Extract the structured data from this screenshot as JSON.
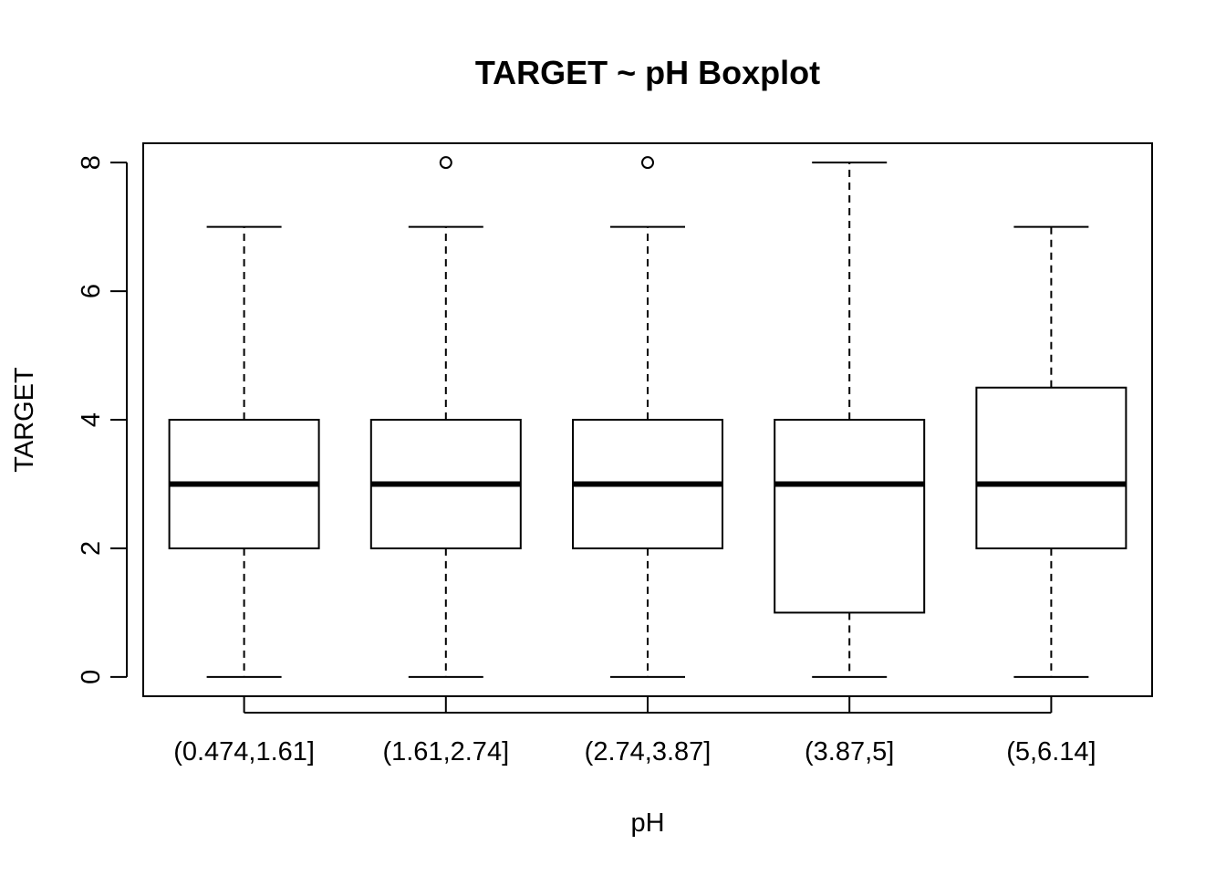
{
  "chart_data": {
    "type": "boxplot",
    "title": "TARGET ~ pH Boxplot",
    "xlabel": "pH",
    "ylabel": "TARGET",
    "ylim": [
      -0.3,
      8.3
    ],
    "yticks": [
      0,
      2,
      4,
      6,
      8
    ],
    "yticklabels": [
      "0",
      "2",
      "4",
      "6",
      "8"
    ],
    "categories": [
      "(0.474,1.61]",
      "(1.61,2.74]",
      "(2.74,3.87]",
      "(3.87,5]",
      "(5,6.14]"
    ],
    "boxes": [
      {
        "whisker_low": 0,
        "q1": 2,
        "median": 3,
        "q3": 4,
        "whisker_high": 7,
        "outliers": []
      },
      {
        "whisker_low": 0,
        "q1": 2,
        "median": 3,
        "q3": 4,
        "whisker_high": 7,
        "outliers": [
          8
        ]
      },
      {
        "whisker_low": 0,
        "q1": 2,
        "median": 3,
        "q3": 4,
        "whisker_high": 7,
        "outliers": [
          8
        ]
      },
      {
        "whisker_low": 0,
        "q1": 1,
        "median": 3,
        "q3": 4,
        "whisker_high": 8,
        "outliers": []
      },
      {
        "whisker_low": 0,
        "q1": 2,
        "median": 3,
        "q3": 4.5,
        "whisker_high": 7,
        "outliers": []
      }
    ],
    "grid": false,
    "legend": "none",
    "colors": {
      "box_fill": "#ffffff",
      "stroke": "#000000"
    }
  }
}
